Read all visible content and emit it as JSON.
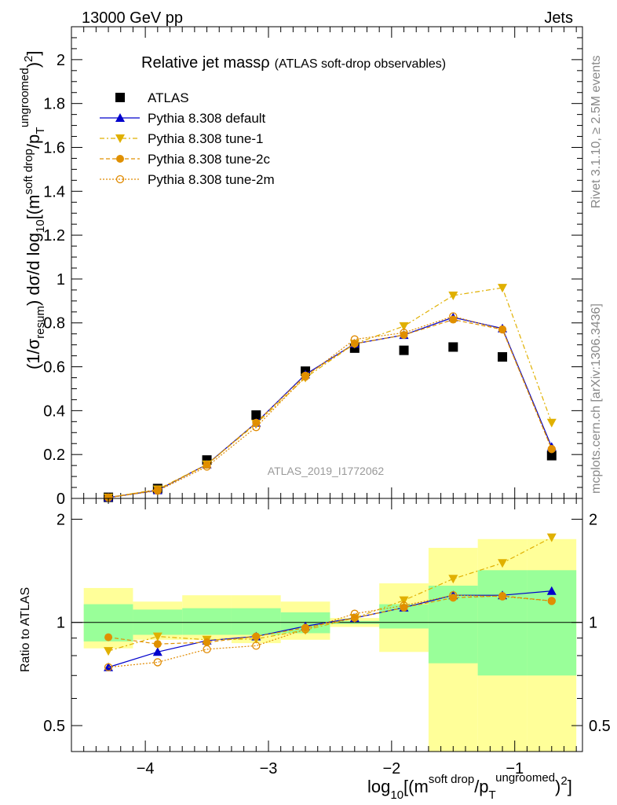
{
  "header": {
    "left": "13000 GeV pp",
    "right": "Jets"
  },
  "side": {
    "rivet": "Rivet 3.1.10, ≥ 2.5M events",
    "mcplots": "mcplots.cern.ch [arXiv:1306.3436]"
  },
  "chart_data": [
    {
      "type": "scatter",
      "title_main": "Relative jet mass",
      "title_rho": "ρ",
      "title_sub": "(ATLAS soft-drop observables)",
      "watermark": "ATLAS_2019_I1772062",
      "ylabel": "(1/σ_resum) dσ/d log10[(m^soft drop/pT^ungroomed)^2]",
      "xlim": [
        -4.6,
        -0.45
      ],
      "ylim": [
        0,
        2.15
      ],
      "yticks": [
        0,
        0.2,
        0.4,
        0.6,
        0.8,
        1,
        1.2,
        1.4,
        1.6,
        1.8,
        2
      ],
      "ytick_labels": [
        "0",
        "0.2",
        "0.4",
        "0.6",
        "0.8",
        "1",
        "1.2",
        "1.4",
        "1.6",
        "1.8",
        "2"
      ],
      "legend_placement": "top-left",
      "x": [
        -4.3,
        -3.9,
        -3.5,
        -3.1,
        -2.7,
        -2.3,
        -1.9,
        -1.5,
        -1.1,
        -0.7
      ],
      "series": [
        {
          "name": "ATLAS",
          "color": "#000000",
          "marker": "square",
          "values": [
            0.005,
            0.045,
            0.175,
            0.38,
            0.58,
            0.685,
            0.675,
            0.69,
            0.645,
            0.195
          ]
        },
        {
          "name": "Pythia 8.308 default",
          "color": "#0000cc",
          "marker": "triangle-up",
          "dash": "",
          "values": [
            0.004,
            0.037,
            0.155,
            0.345,
            0.565,
            0.705,
            0.745,
            0.825,
            0.775,
            0.235
          ]
        },
        {
          "name": "Pythia 8.308 tune-1",
          "color": "#e0b000",
          "marker": "triangle-down",
          "dash": "6,3,2,3",
          "values": [
            0.004,
            0.041,
            0.155,
            0.34,
            0.55,
            0.705,
            0.785,
            0.925,
            0.96,
            0.345
          ]
        },
        {
          "name": "Pythia 8.308 tune-2c",
          "color": "#e09000",
          "marker": "circle",
          "dash": "5,3",
          "values": [
            0.0045,
            0.039,
            0.153,
            0.345,
            0.56,
            0.705,
            0.745,
            0.815,
            0.77,
            0.225
          ]
        },
        {
          "name": "Pythia 8.308 tune-2m",
          "color": "#e08a00",
          "marker": "circle-open",
          "dash": "2,2",
          "values": [
            0.0035,
            0.035,
            0.145,
            0.325,
            0.555,
            0.725,
            0.755,
            0.83,
            0.77,
            0.225
          ]
        }
      ]
    },
    {
      "type": "scatter",
      "ylabel": "Ratio to ATLAS",
      "xlabel": "log10[(m^soft drop/pT^ungroomed)^2]",
      "xlim": [
        -4.6,
        -0.45
      ],
      "ylim": [
        0.42,
        2.3
      ],
      "xticks": [
        -4,
        -3,
        -2,
        -1
      ],
      "xtick_labels": [
        "−4",
        "−3",
        "−2",
        "−1"
      ],
      "yticks": [
        0.5,
        1,
        2
      ],
      "ytick_labels": [
        "0.5",
        "1",
        "2"
      ],
      "yscale": "log",
      "reference_line": 1,
      "bin_edges": [
        -4.5,
        -4.1,
        -3.7,
        -3.3,
        -2.9,
        -2.5,
        -2.1,
        -1.7,
        -1.3,
        -0.9,
        -0.5
      ],
      "band_stat": {
        "color": "#99ff99",
        "low": [
          0.88,
          0.92,
          0.92,
          0.92,
          0.93,
          0.99,
          0.96,
          0.76,
          0.7,
          0.7
        ],
        "high": [
          1.13,
          1.09,
          1.1,
          1.1,
          1.07,
          1.01,
          1.13,
          1.28,
          1.42,
          1.42
        ]
      },
      "band_total": {
        "color": "#ffff99",
        "low": [
          0.84,
          0.89,
          0.89,
          0.87,
          0.89,
          0.97,
          0.82,
          0.39,
          0.36,
          0.36
        ],
        "high": [
          1.26,
          1.15,
          1.2,
          1.2,
          1.15,
          1.03,
          1.3,
          1.65,
          1.75,
          1.75
        ]
      },
      "x": [
        -4.3,
        -3.9,
        -3.5,
        -3.1,
        -2.7,
        -2.3,
        -1.9,
        -1.5,
        -1.1,
        -0.7
      ],
      "series": [
        {
          "name": "Pythia 8.308 default",
          "values": [
            0.74,
            0.82,
            0.885,
            0.91,
            0.975,
            1.03,
            1.105,
            1.2,
            1.2,
            1.235
          ]
        },
        {
          "name": "Pythia 8.308 tune-1",
          "values": [
            0.825,
            0.91,
            0.89,
            0.895,
            0.95,
            1.03,
            1.16,
            1.34,
            1.49,
            1.77
          ]
        },
        {
          "name": "Pythia 8.308 tune-2c",
          "values": [
            0.905,
            0.865,
            0.875,
            0.91,
            0.965,
            1.03,
            1.105,
            1.18,
            1.195,
            1.155
          ]
        },
        {
          "name": "Pythia 8.308 tune-2m",
          "values": [
            0.74,
            0.765,
            0.835,
            0.855,
            0.955,
            1.06,
            1.12,
            1.2,
            1.19,
            1.155
          ]
        }
      ]
    }
  ]
}
